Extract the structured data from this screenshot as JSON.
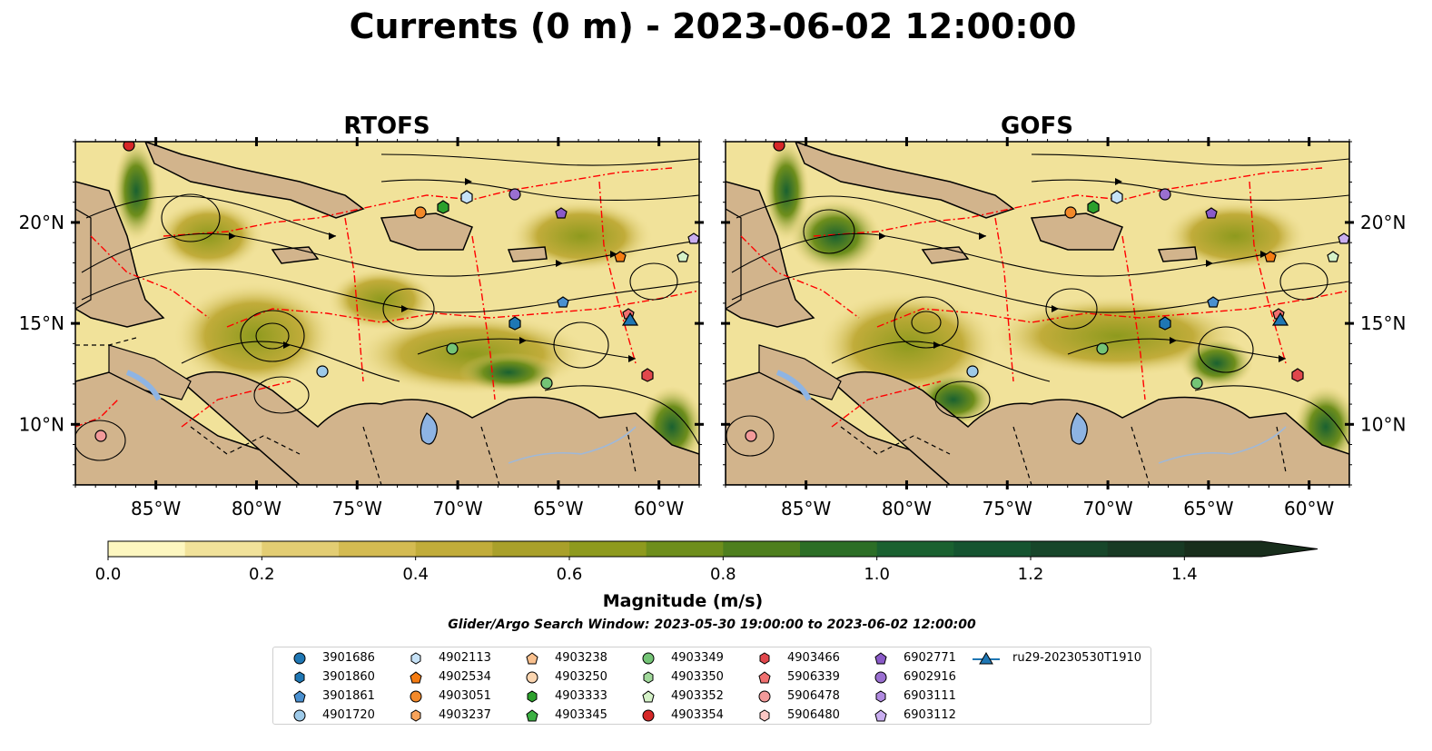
{
  "title": "Currents (0 m) - 2023-06-02 12:00:00",
  "panels": [
    {
      "title": "RTOFS"
    },
    {
      "title": "GOFS"
    }
  ],
  "colorbar": {
    "label": "Magnitude (m/s)",
    "ticks": [
      "0.0",
      "0.2",
      "0.4",
      "0.6",
      "0.8",
      "1.0",
      "1.2",
      "1.4"
    ],
    "colors": [
      "#fdf7c0",
      "#f1e29a",
      "#e3cd73",
      "#d4bb52",
      "#c1ac3a",
      "#a9a02a",
      "#8e9a1e",
      "#6e8e1c",
      "#4e7f1e",
      "#2c6e26",
      "#1a6130",
      "#155430",
      "#17462a",
      "#183a24",
      "#182e1c"
    ]
  },
  "subtitle": "Glider/Argo Search Window: 2023-05-30 19:00:00 to 2023-06-02 12:00:00",
  "chart_data": [
    {
      "type": "heatmap",
      "title": "RTOFS",
      "variable": "surface current magnitude with streamlines",
      "xlabel": "",
      "ylabel": "",
      "x_ticks": [
        "85°W",
        "80°W",
        "75°W",
        "70°W",
        "65°W",
        "60°W"
      ],
      "y_ticks": [
        "10°N",
        "15°N",
        "20°N"
      ],
      "xlim": [
        -89,
        -58
      ],
      "ylim": [
        7,
        24
      ],
      "vmin": 0.0,
      "vmax": 1.5
    },
    {
      "type": "heatmap",
      "title": "GOFS",
      "variable": "surface current magnitude with streamlines",
      "xlabel": "",
      "ylabel": "",
      "x_ticks": [
        "85°W",
        "80°W",
        "75°W",
        "70°W",
        "65°W",
        "60°W"
      ],
      "y_ticks": [
        "10°N",
        "15°N",
        "20°N"
      ],
      "xlim": [
        -89,
        -58
      ],
      "ylim": [
        7,
        24
      ],
      "vmin": 0.0,
      "vmax": 1.5
    }
  ],
  "legend": [
    {
      "label": "3901686",
      "marker": "circle",
      "color": "#1f77b4"
    },
    {
      "label": "3901860",
      "marker": "hexagon",
      "color": "#1f77b4"
    },
    {
      "label": "3901861",
      "marker": "pentagon",
      "color": "#4a90d0"
    },
    {
      "label": "4901720",
      "marker": "circle",
      "color": "#9ecae9"
    },
    {
      "label": "4902113",
      "marker": "hexagon",
      "color": "#c6e2f7"
    },
    {
      "label": "4902534",
      "marker": "pentagon",
      "color": "#f57c12"
    },
    {
      "label": "4903051",
      "marker": "circle",
      "color": "#f3892a"
    },
    {
      "label": "4903237",
      "marker": "hexagon",
      "color": "#f8a35a"
    },
    {
      "label": "4903238",
      "marker": "pentagon",
      "color": "#f9c08e"
    },
    {
      "label": "4903250",
      "marker": "circle",
      "color": "#fbd5b0"
    },
    {
      "label": "4903333",
      "marker": "hexagon",
      "color": "#2ca02c"
    },
    {
      "label": "4903345",
      "marker": "pentagon",
      "color": "#3cb043"
    },
    {
      "label": "4903349",
      "marker": "circle",
      "color": "#74c476"
    },
    {
      "label": "4903350",
      "marker": "hexagon",
      "color": "#a1d99b"
    },
    {
      "label": "4903352",
      "marker": "pentagon",
      "color": "#d5f2c8"
    },
    {
      "label": "4903354",
      "marker": "circle",
      "color": "#d62728"
    },
    {
      "label": "4903466",
      "marker": "hexagon",
      "color": "#e0474c"
    },
    {
      "label": "5906339",
      "marker": "pentagon",
      "color": "#f07070"
    },
    {
      "label": "5906478",
      "marker": "circle",
      "color": "#f29a9a"
    },
    {
      "label": "5906480",
      "marker": "hexagon",
      "color": "#fbc6c4"
    },
    {
      "label": "6902771",
      "marker": "pentagon",
      "color": "#8a5ac8"
    },
    {
      "label": "6902916",
      "marker": "circle",
      "color": "#9a6fd0"
    },
    {
      "label": "6903111",
      "marker": "hexagon",
      "color": "#b08ae0"
    },
    {
      "label": "6903112",
      "marker": "pentagon",
      "color": "#c9aef0"
    },
    {
      "label": "ru29-20230530T1910",
      "marker": "triangle-line",
      "color": "#1f77b4"
    }
  ],
  "colors": {
    "land": "#d2b48c",
    "lake": "#8eb4e3",
    "eez": "#ff0000",
    "streamline": "#000000"
  }
}
